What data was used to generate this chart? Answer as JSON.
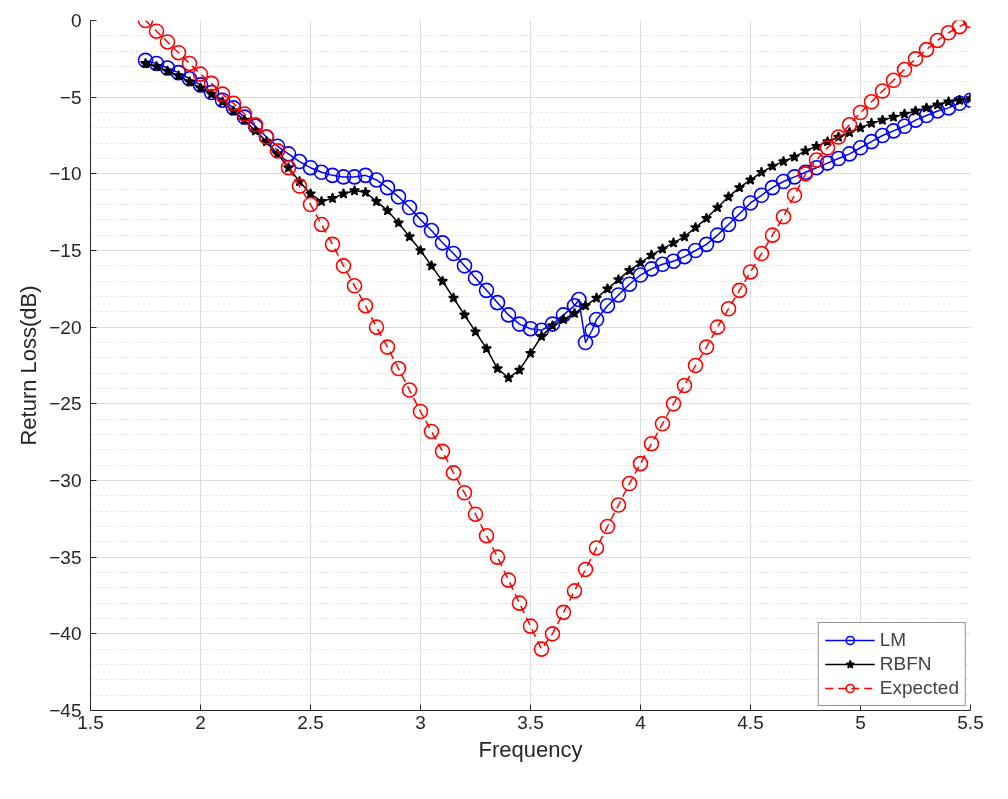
{
  "chart_data": {
    "type": "line",
    "xlabel": "Frequency",
    "ylabel": "Return Loss(dB)",
    "xlim": [
      1.5,
      5.5
    ],
    "ylim": [
      -45,
      0
    ],
    "xticks": [
      1.5,
      2,
      2.5,
      3,
      3.5,
      4,
      4.5,
      5,
      5.5
    ],
    "yticks": [
      -45,
      -40,
      -35,
      -30,
      -25,
      -20,
      -15,
      -10,
      -5,
      0
    ],
    "grid": true,
    "legend": "bottom right",
    "series": [
      {
        "name": "LM",
        "color": "#0000ff",
        "marker": "circle",
        "line_style": "solid",
        "x": [
          1.75,
          1.8,
          1.85,
          1.9,
          1.95,
          2.0,
          2.05,
          2.1,
          2.15,
          2.2,
          2.25,
          2.3,
          2.35,
          2.4,
          2.45,
          2.5,
          2.55,
          2.6,
          2.65,
          2.7,
          2.75,
          2.8,
          2.85,
          2.9,
          2.95,
          3.0,
          3.05,
          3.1,
          3.15,
          3.2,
          3.25,
          3.3,
          3.35,
          3.4,
          3.45,
          3.5,
          3.55,
          3.6,
          3.65,
          3.7,
          3.72,
          3.75,
          3.78,
          3.8,
          3.85,
          3.9,
          3.95,
          4.0,
          4.05,
          4.1,
          4.15,
          4.2,
          4.25,
          4.3,
          4.35,
          4.4,
          4.45,
          4.5,
          4.55,
          4.6,
          4.65,
          4.7,
          4.75,
          4.8,
          4.85,
          4.9,
          4.95,
          5.0,
          5.05,
          5.1,
          5.15,
          5.2,
          5.25,
          5.3,
          5.35,
          5.4,
          5.45,
          5.5
        ],
        "values": [
          -2.6,
          -2.8,
          -3.1,
          -3.4,
          -3.8,
          -4.2,
          -4.7,
          -5.2,
          -5.7,
          -6.3,
          -6.9,
          -7.6,
          -8.2,
          -8.7,
          -9.2,
          -9.6,
          -9.9,
          -10.1,
          -10.2,
          -10.2,
          -10.1,
          -10.4,
          -10.9,
          -11.5,
          -12.2,
          -13.0,
          -13.7,
          -14.5,
          -15.2,
          -16.0,
          -16.8,
          -17.6,
          -18.4,
          -19.2,
          -19.8,
          -20.1,
          -20.2,
          -19.8,
          -19.2,
          -18.6,
          -18.2,
          -21.0,
          -20.2,
          -19.5,
          -18.6,
          -17.9,
          -17.2,
          -16.6,
          -16.2,
          -15.9,
          -15.7,
          -15.4,
          -15.0,
          -14.6,
          -14.0,
          -13.3,
          -12.6,
          -11.9,
          -11.4,
          -10.9,
          -10.5,
          -10.2,
          -9.9,
          -9.6,
          -9.3,
          -9.0,
          -8.7,
          -8.3,
          -7.9,
          -7.5,
          -7.2,
          -6.9,
          -6.5,
          -6.2,
          -5.9,
          -5.7,
          -5.4,
          -5.2
        ]
      },
      {
        "name": "RBFN",
        "color": "#000000",
        "marker": "star",
        "line_style": "solid",
        "x": [
          1.75,
          1.8,
          1.85,
          1.9,
          1.95,
          2.0,
          2.05,
          2.1,
          2.15,
          2.2,
          2.25,
          2.3,
          2.35,
          2.4,
          2.45,
          2.5,
          2.55,
          2.6,
          2.65,
          2.7,
          2.75,
          2.8,
          2.85,
          2.9,
          2.95,
          3.0,
          3.05,
          3.1,
          3.15,
          3.2,
          3.25,
          3.3,
          3.35,
          3.4,
          3.45,
          3.5,
          3.55,
          3.6,
          3.65,
          3.7,
          3.75,
          3.8,
          3.85,
          3.9,
          3.95,
          4.0,
          4.05,
          4.1,
          4.15,
          4.2,
          4.25,
          4.3,
          4.35,
          4.4,
          4.45,
          4.5,
          4.55,
          4.6,
          4.65,
          4.7,
          4.75,
          4.8,
          4.85,
          4.9,
          4.95,
          5.0,
          5.05,
          5.1,
          5.15,
          5.2,
          5.25,
          5.3,
          5.35,
          5.4,
          5.45,
          5.5
        ],
        "values": [
          -2.8,
          -3.0,
          -3.3,
          -3.6,
          -4.0,
          -4.4,
          -4.8,
          -5.3,
          -5.9,
          -6.5,
          -7.2,
          -7.9,
          -8.7,
          -9.6,
          -10.5,
          -11.3,
          -11.8,
          -11.6,
          -11.3,
          -11.1,
          -11.2,
          -11.8,
          -12.4,
          -13.2,
          -14.1,
          -15.0,
          -16.0,
          -17.0,
          -18.1,
          -19.2,
          -20.3,
          -21.4,
          -22.7,
          -23.3,
          -22.8,
          -21.7,
          -20.6,
          -19.9,
          -19.5,
          -19.1,
          -18.6,
          -18.1,
          -17.5,
          -16.9,
          -16.3,
          -15.8,
          -15.3,
          -14.9,
          -14.5,
          -14.1,
          -13.5,
          -12.9,
          -12.2,
          -11.5,
          -10.9,
          -10.4,
          -9.9,
          -9.5,
          -9.2,
          -8.9,
          -8.5,
          -8.2,
          -7.9,
          -7.6,
          -7.3,
          -7.0,
          -6.7,
          -6.5,
          -6.3,
          -6.1,
          -5.9,
          -5.7,
          -5.5,
          -5.3,
          -5.2,
          -5.1
        ]
      },
      {
        "name": "Expected",
        "color": "#ff0000",
        "marker": "circle",
        "line_style": "dashed",
        "x": [
          1.75,
          1.8,
          1.85,
          1.9,
          1.95,
          2.0,
          2.05,
          2.1,
          2.15,
          2.2,
          2.25,
          2.3,
          2.35,
          2.4,
          2.45,
          2.5,
          2.55,
          2.6,
          2.65,
          2.7,
          2.75,
          2.8,
          2.85,
          2.9,
          2.95,
          3.0,
          3.05,
          3.1,
          3.15,
          3.2,
          3.25,
          3.3,
          3.35,
          3.4,
          3.45,
          3.5,
          3.55,
          3.6,
          3.65,
          3.7,
          3.75,
          3.8,
          3.85,
          3.9,
          3.95,
          4.0,
          4.05,
          4.1,
          4.15,
          4.2,
          4.25,
          4.3,
          4.35,
          4.4,
          4.45,
          4.5,
          4.55,
          4.6,
          4.65,
          4.7,
          4.75,
          4.8,
          4.85,
          4.9,
          4.95,
          5.0,
          5.05,
          5.1,
          5.15,
          5.2,
          5.25,
          5.3,
          5.35,
          5.4,
          5.45,
          5.5
        ],
        "values": [
          0,
          -0.7,
          -1.4,
          -2.1,
          -2.8,
          -3.5,
          -4.1,
          -4.8,
          -5.4,
          -6.1,
          -6.8,
          -7.6,
          -8.5,
          -9.6,
          -10.8,
          -12.0,
          -13.3,
          -14.6,
          -16.0,
          -17.3,
          -18.6,
          -20.0,
          -21.3,
          -22.7,
          -24.1,
          -25.5,
          -26.8,
          -28.1,
          -29.5,
          -30.8,
          -32.2,
          -33.6,
          -35.0,
          -36.5,
          -38.0,
          -39.5,
          -41.0,
          -40.0,
          -38.6,
          -37.2,
          -35.8,
          -34.4,
          -33.0,
          -31.6,
          -30.2,
          -28.9,
          -27.6,
          -26.3,
          -25.0,
          -23.8,
          -22.5,
          -21.3,
          -20.0,
          -18.8,
          -17.6,
          -16.4,
          -15.2,
          -14.0,
          -12.8,
          -11.4,
          -10.0,
          -9.1,
          -8.3,
          -7.6,
          -6.8,
          -6.0,
          -5.3,
          -4.6,
          -3.9,
          -3.2,
          -2.5,
          -1.9,
          -1.3,
          -0.8,
          -0.4,
          0
        ]
      }
    ]
  }
}
